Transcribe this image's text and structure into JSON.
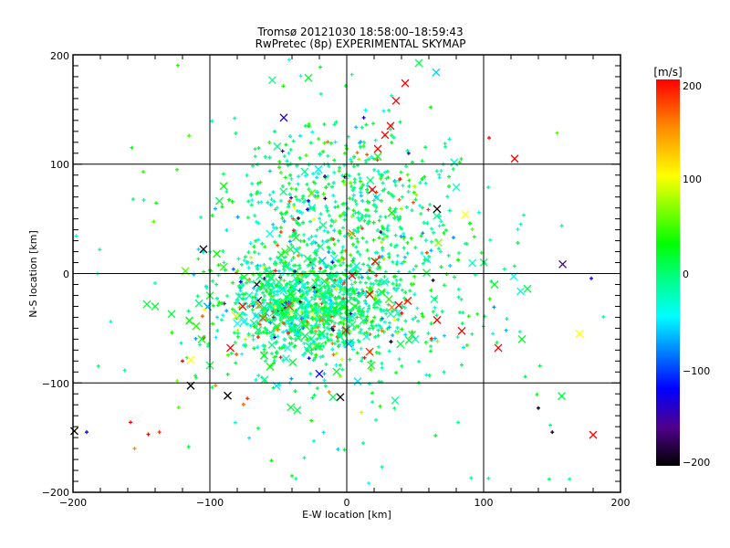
{
  "chart_data": {
    "type": "scatter",
    "title": "Tromsø 20121030 18:58:00–18:59:43",
    "subtitle": "RwPretec (8p) EXPERIMENTAL SKYMAP",
    "xlabel": "E-W location [km]",
    "ylabel": "N-S location [km]",
    "xlim": [
      -200,
      200
    ],
    "ylim": [
      -200,
      200
    ],
    "grid": true,
    "x_ticks": [
      -200,
      -100,
      0,
      100,
      200
    ],
    "y_ticks": [
      -200,
      -100,
      0,
      100,
      200
    ],
    "x_tick_labels": [
      "−200",
      "−100",
      "0",
      "100",
      "200"
    ],
    "y_tick_labels": [
      "−200",
      "−100",
      "0",
      "100",
      "200"
    ],
    "colorbar": {
      "label": "[m/s]",
      "range": [
        -200,
        200
      ],
      "ticks": [
        200,
        100,
        0,
        -100,
        -200
      ],
      "tick_labels": [
        "200",
        "100",
        "0",
        "−100",
        "−200"
      ],
      "stops": [
        {
          "v": -200,
          "color": "#000000"
        },
        {
          "v": -160,
          "color": "#50008c"
        },
        {
          "v": -120,
          "color": "#0000ff"
        },
        {
          "v": -45,
          "color": "#00ffff"
        },
        {
          "v": 0,
          "color": "#00ff70"
        },
        {
          "v": 30,
          "color": "#00ff00"
        },
        {
          "v": 100,
          "color": "#ffff00"
        },
        {
          "v": 150,
          "color": "#ff8c00"
        },
        {
          "v": 200,
          "color": "#ff0000"
        }
      ]
    },
    "series_fields": [
      "x_km",
      "y_km",
      "velocity_ms",
      "marker"
    ],
    "points": [
      [
        122.7,
        105,
        200,
        "x"
      ],
      [
        180,
        -147.5,
        200,
        "x"
      ],
      [
        42.7,
        174,
        200,
        "x"
      ],
      [
        36,
        158,
        200,
        "x"
      ],
      [
        32,
        135,
        200,
        "x"
      ],
      [
        28,
        126.7,
        200,
        "x"
      ],
      [
        22.7,
        114,
        200,
        "x"
      ],
      [
        22.7,
        107,
        20,
        "x"
      ],
      [
        52.7,
        192.5,
        10,
        "x"
      ],
      [
        65.3,
        184,
        -60,
        "x"
      ],
      [
        -46,
        142.5,
        -140,
        "x"
      ],
      [
        -28,
        179,
        20,
        "x"
      ],
      [
        66,
        59,
        -200,
        "x"
      ],
      [
        86.7,
        54,
        100,
        "x"
      ],
      [
        18.7,
        76.7,
        200,
        "x"
      ],
      [
        4,
        -1.7,
        200,
        "x"
      ],
      [
        16.7,
        -19,
        200,
        "x"
      ],
      [
        38,
        -29,
        200,
        "x"
      ],
      [
        66,
        -42.5,
        200,
        "x"
      ],
      [
        84,
        -52.5,
        200,
        "x"
      ],
      [
        110.7,
        -68,
        200,
        "x"
      ],
      [
        170,
        -55,
        100,
        "x"
      ],
      [
        128,
        -60,
        20,
        "x"
      ],
      [
        122,
        -2.5,
        -40,
        "x"
      ],
      [
        132,
        -14,
        10,
        "x"
      ],
      [
        108,
        -10,
        20,
        "x"
      ],
      [
        20.7,
        11,
        200,
        "x"
      ],
      [
        157,
        -112,
        10,
        "x"
      ],
      [
        -114,
        -102.5,
        -200,
        "x"
      ],
      [
        -87,
        -111.7,
        -200,
        "x"
      ],
      [
        -4.7,
        -113,
        -200,
        "x"
      ],
      [
        -114,
        -79,
        100,
        "x"
      ],
      [
        -85,
        -68,
        200,
        "x"
      ],
      [
        -20,
        -91.7,
        -120,
        "x"
      ],
      [
        -64,
        -29,
        150,
        "x"
      ],
      [
        -76,
        -30,
        200,
        "x"
      ],
      [
        -81,
        -39,
        90,
        "x"
      ],
      [
        -199,
        -144,
        -200,
        "x"
      ],
      [
        -146,
        -28,
        15,
        "x"
      ],
      [
        -140,
        -30,
        15,
        "x"
      ],
      [
        -128,
        -37,
        15,
        "x"
      ],
      [
        -115,
        -43,
        30,
        "x"
      ],
      [
        -110,
        -48,
        40,
        "x"
      ],
      [
        -106,
        -60,
        25,
        "x"
      ],
      [
        -100,
        -84,
        10,
        "x"
      ],
      [
        -60,
        -97,
        -10,
        "x"
      ],
      [
        -56,
        -85,
        30,
        "x"
      ],
      [
        -10,
        -113,
        5,
        "x"
      ],
      [
        80,
        79,
        -30,
        "x"
      ],
      [
        50,
        -60,
        -20,
        "x"
      ],
      [
        -90,
        80,
        30,
        "x"
      ],
      [
        -48,
        17,
        20,
        "x"
      ],
      [
        -90,
        6,
        40,
        "x"
      ],
      [
        -95,
        18,
        30,
        "x"
      ],
      [
        -45,
        20,
        40,
        "x"
      ],
      [
        148,
        -188,
        0,
        "+"
      ],
      [
        -158,
        -136,
        200,
        "+"
      ],
      [
        -120,
        -80,
        200,
        "+"
      ],
      [
        -190,
        -145,
        -120,
        "+"
      ],
      [
        -145,
        -147,
        200,
        "+"
      ],
      [
        -155,
        -160,
        150,
        "+"
      ],
      [
        -104,
        -33,
        100,
        "+"
      ],
      [
        -182,
        0,
        -30,
        "+"
      ],
      [
        -124,
        95,
        40,
        "+"
      ],
      [
        -157,
        115,
        30,
        "+"
      ],
      [
        104,
        124,
        200,
        "+"
      ],
      [
        140,
        -123,
        -200,
        "+"
      ],
      [
        -55,
        -171,
        30,
        "+"
      ],
      [
        -40,
        -185,
        30,
        "+"
      ],
      [
        12,
        -155,
        0,
        "+"
      ]
    ]
  }
}
